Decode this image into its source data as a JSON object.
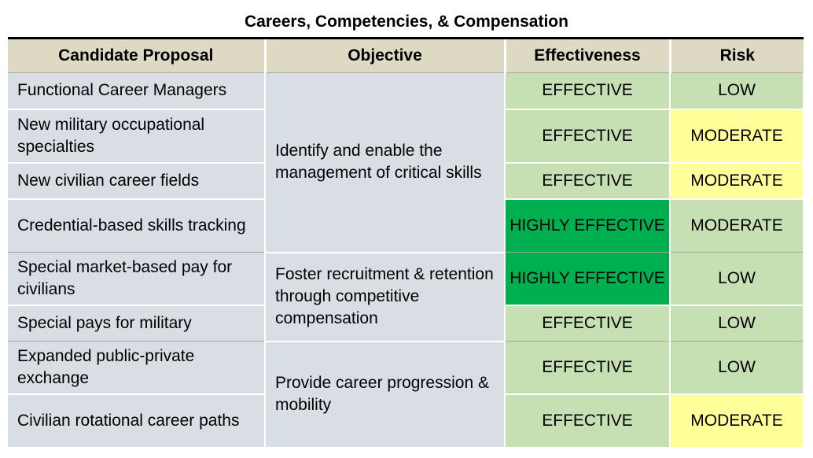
{
  "title": "Careers, Competencies, & Compensation",
  "headers": {
    "candidate": "Candidate Proposal",
    "objective": "Objective",
    "effectiveness": "Effectiveness",
    "risk": "Risk"
  },
  "objectives": [
    "Identify and enable the management of critical skills",
    "Foster recruitment & retention through competitive compensation",
    "Provide career progression & mobility"
  ],
  "rows": [
    {
      "proposal": "Functional Career Managers",
      "effectiveness": "EFFECTIVE",
      "risk": "LOW"
    },
    {
      "proposal": "New military occupational specialties",
      "effectiveness": "EFFECTIVE",
      "risk": "MODERATE"
    },
    {
      "proposal": "New civilian career fields",
      "effectiveness": "EFFECTIVE",
      "risk": "MODERATE"
    },
    {
      "proposal": "Credential-based skills tracking",
      "effectiveness": "HIGHLY EFFECTIVE",
      "risk": "MODERATE"
    },
    {
      "proposal": "Special market-based pay for civilians",
      "effectiveness": "HIGHLY EFFECTIVE",
      "risk": "LOW"
    },
    {
      "proposal": "Special pays for military",
      "effectiveness": "EFFECTIVE",
      "risk": "LOW"
    },
    {
      "proposal": "Expanded public-private exchange",
      "effectiveness": "EFFECTIVE",
      "risk": "LOW"
    },
    {
      "proposal": "Civilian rotational career paths",
      "effectiveness": "EFFECTIVE",
      "risk": "MODERATE"
    }
  ],
  "colors": {
    "header_bg": "#ddd9c3",
    "row_bg": "#d9dde4",
    "effective": "#c6e0b4",
    "highly_effective": "#00b050",
    "low": "#c6e0b4",
    "moderate": "#ffff99"
  }
}
